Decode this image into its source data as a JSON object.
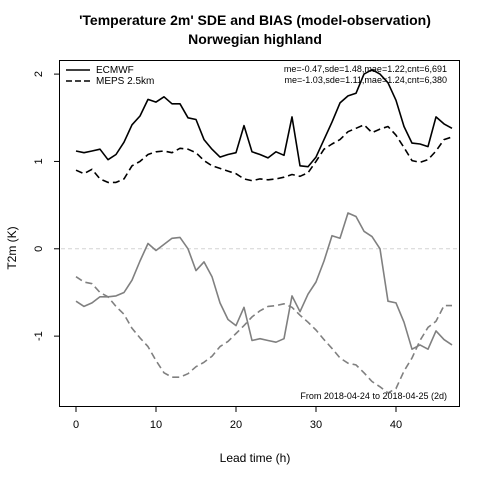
{
  "chart_data": {
    "type": "line",
    "title": "'Temperature 2m' SDE and BIAS (model-observation)",
    "subtitle": "Norwegian highland",
    "xlabel": "Lead time (h)",
    "ylabel": "T2m (K)",
    "xlim": [
      -2,
      48
    ],
    "ylim": [
      -1.8,
      2.15
    ],
    "xticks": [
      0,
      10,
      20,
      30,
      40
    ],
    "yticks": [
      -1,
      0,
      1,
      2
    ],
    "grid": false,
    "reference_line_y": 0,
    "legend": {
      "placement": "top-left",
      "entries": [
        {
          "label": "ECMWF",
          "style": "solid",
          "color": "#000000"
        },
        {
          "label": "MEPS 2.5km",
          "style": "dashed",
          "color": "#000000"
        }
      ]
    },
    "stats": [
      "me=-0.47,sde=1.48,mae=1.22,cnt=6,691",
      "me=-1.03,sde=1.11,mae=1.24,cnt=6,380"
    ],
    "note": "From 2018-04-24 to 2018-04-25 (2d)",
    "x": [
      0,
      1,
      2,
      3,
      4,
      5,
      6,
      7,
      8,
      9,
      10,
      11,
      12,
      13,
      14,
      15,
      16,
      17,
      18,
      19,
      20,
      21,
      22,
      23,
      24,
      25,
      26,
      27,
      28,
      29,
      30,
      31,
      32,
      33,
      34,
      35,
      36,
      37,
      38,
      39,
      40,
      41,
      42,
      43,
      44,
      45,
      46,
      47
    ],
    "series": [
      {
        "name": "ECMWF",
        "metric": "SDE",
        "color": "#000000",
        "style": "solid",
        "values": [
          1.12,
          1.1,
          1.12,
          1.14,
          1.02,
          1.08,
          1.22,
          1.42,
          1.52,
          1.71,
          1.68,
          1.74,
          1.66,
          1.66,
          1.5,
          1.48,
          1.25,
          1.14,
          1.05,
          1.08,
          1.1,
          1.41,
          1.11,
          1.08,
          1.04,
          1.11,
          1.07,
          1.51,
          0.95,
          0.94,
          1.05,
          1.25,
          1.45,
          1.67,
          1.75,
          1.78,
          2.0,
          2.05,
          2.0,
          1.9,
          1.7,
          1.4,
          1.21,
          1.2,
          1.17,
          1.51,
          1.43,
          1.38
        ]
      },
      {
        "name": "MEPS 2.5km",
        "metric": "SDE",
        "color": "#000000",
        "style": "dashed",
        "values": [
          0.9,
          0.86,
          0.91,
          0.8,
          0.76,
          0.76,
          0.8,
          0.95,
          1.0,
          1.08,
          1.11,
          1.12,
          1.1,
          1.15,
          1.14,
          1.1,
          1.01,
          0.95,
          0.92,
          0.89,
          0.86,
          0.8,
          0.78,
          0.8,
          0.79,
          0.8,
          0.82,
          0.85,
          0.83,
          0.87,
          1.0,
          1.14,
          1.2,
          1.25,
          1.34,
          1.38,
          1.42,
          1.33,
          1.37,
          1.4,
          1.3,
          1.16,
          1.01,
          0.99,
          1.02,
          1.12,
          1.25,
          1.28
        ]
      },
      {
        "name": "ECMWF",
        "metric": "BIAS",
        "color": "#808080",
        "style": "solid",
        "values": [
          -0.6,
          -0.66,
          -0.62,
          -0.55,
          -0.55,
          -0.54,
          -0.5,
          -0.36,
          -0.14,
          0.06,
          -0.02,
          0.05,
          0.12,
          0.13,
          0.0,
          -0.25,
          -0.15,
          -0.32,
          -0.62,
          -0.81,
          -0.88,
          -0.67,
          -1.05,
          -1.03,
          -1.05,
          -1.07,
          -1.03,
          -0.54,
          -0.72,
          -0.52,
          -0.38,
          -0.14,
          0.15,
          0.12,
          0.41,
          0.37,
          0.2,
          0.14,
          0.0,
          -0.6,
          -0.62,
          -0.84,
          -1.15,
          -1.1,
          -1.15,
          -0.94,
          -1.04,
          -1.1
        ]
      },
      {
        "name": "MEPS 2.5km",
        "metric": "BIAS",
        "color": "#808080",
        "style": "dashed",
        "values": [
          -0.32,
          -0.38,
          -0.4,
          -0.5,
          -0.55,
          -0.66,
          -0.75,
          -0.91,
          -1.02,
          -1.12,
          -1.28,
          -1.42,
          -1.47,
          -1.47,
          -1.43,
          -1.35,
          -1.3,
          -1.23,
          -1.12,
          -1.06,
          -0.97,
          -0.88,
          -0.78,
          -0.71,
          -0.66,
          -0.65,
          -0.63,
          -0.67,
          -0.76,
          -0.84,
          -0.93,
          -1.04,
          -1.14,
          -1.25,
          -1.31,
          -1.33,
          -1.42,
          -1.52,
          -1.58,
          -1.65,
          -1.6,
          -1.4,
          -1.25,
          -1.05,
          -0.9,
          -0.83,
          -0.65,
          -0.65
        ]
      }
    ]
  }
}
